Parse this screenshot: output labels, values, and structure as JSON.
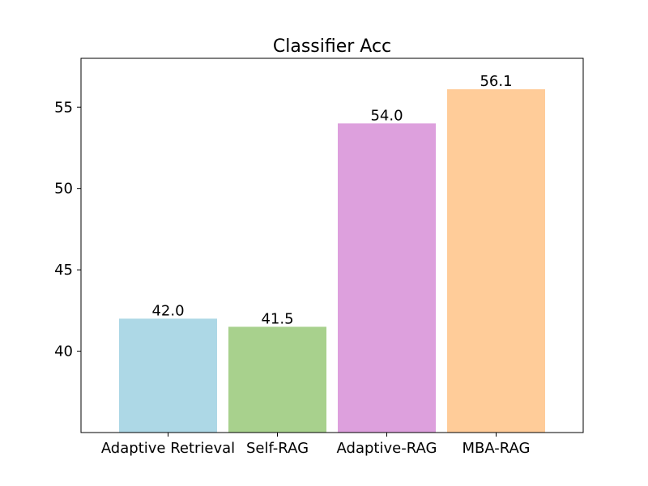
{
  "chart_data": {
    "type": "bar",
    "title": "Classifier Acc",
    "xlabel": "",
    "ylabel": "",
    "categories": [
      "Adaptive Retrieval",
      "Self-RAG",
      "Adaptive-RAG",
      "MBA-RAG"
    ],
    "values": [
      42.0,
      41.5,
      54.0,
      56.1
    ],
    "value_labels": [
      "42.0",
      "41.5",
      "54.0",
      "56.1"
    ],
    "bar_colors": [
      "#add8e6",
      "#a8d18d",
      "#dda0dd",
      "#ffcc99"
    ],
    "ylim": [
      35,
      58
    ],
    "yticks": [
      40,
      45,
      50,
      55
    ],
    "ytick_labels": [
      "40",
      "45",
      "50",
      "55"
    ],
    "grid": false,
    "legend": "none"
  }
}
